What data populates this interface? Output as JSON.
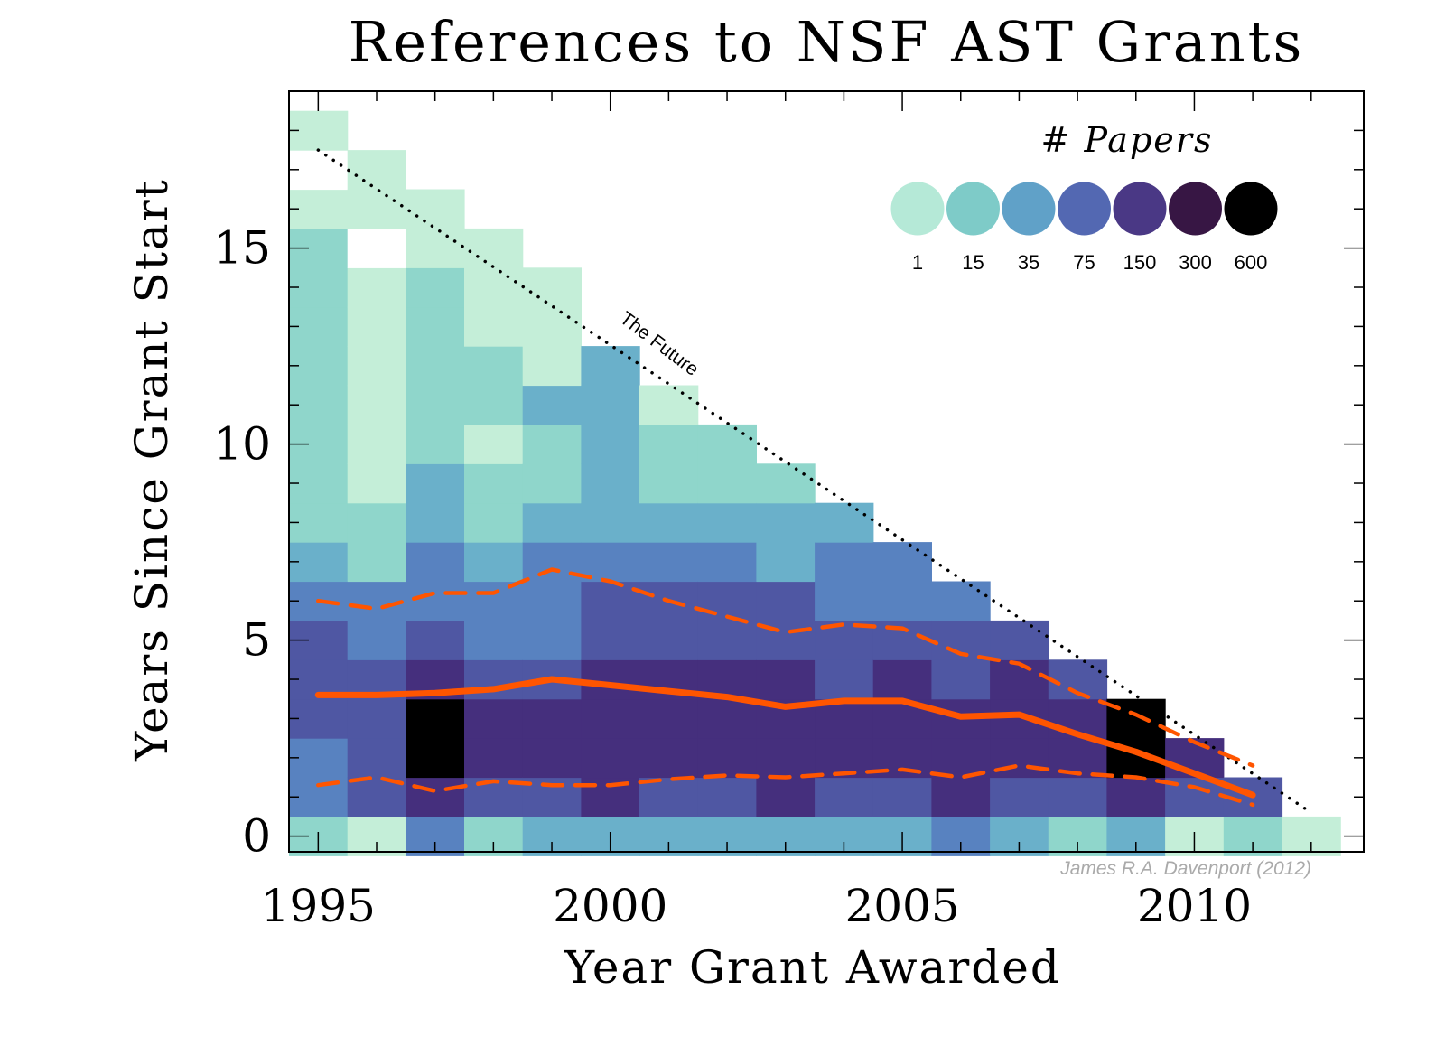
{
  "chart_data": {
    "type": "heatmap",
    "title": "References to NSF AST Grants",
    "xlabel": "Year Grant Awarded",
    "ylabel": "Years Since Grant Start",
    "x_ticks": [
      "1995",
      "2000",
      "2005",
      "2010"
    ],
    "y_ticks": [
      "0",
      "5",
      "10",
      "15"
    ],
    "xlim": [
      1994.5,
      2012.9
    ],
    "ylim": [
      -0.4,
      19.0
    ],
    "legend": {
      "title": "# Papers",
      "placement": "top-right",
      "levels": [
        {
          "label": "1",
          "color": "#b5e9d7"
        },
        {
          "label": "15",
          "color": "#7ecbc8"
        },
        {
          "label": "35",
          "color": "#60a1c8"
        },
        {
          "label": "75",
          "color": "#5368b2"
        },
        {
          "label": "150",
          "color": "#4a3885"
        },
        {
          "label": "300",
          "color": "#371644"
        },
        {
          "label": "600",
          "color": "#000000"
        }
      ]
    },
    "palette_cells": [
      "#c4eed8",
      "#8fd6cb",
      "#6ab0ca",
      "#5882c0",
      "#4f57a3",
      "#452f7d",
      "#000000",
      "#ffffff"
    ],
    "columns": [
      {
        "year": 1995,
        "levels": [
          1,
          3,
          3,
          4,
          4,
          4,
          3,
          2,
          1,
          1,
          1,
          1,
          1,
          1,
          1,
          1,
          0,
          7,
          0
        ]
      },
      {
        "year": 1996,
        "levels": [
          0,
          4,
          4,
          4,
          4,
          3,
          3,
          1,
          1,
          0,
          0,
          0,
          0,
          0,
          0,
          7,
          0,
          0
        ]
      },
      {
        "year": 1997,
        "levels": [
          3,
          5,
          6,
          6,
          5,
          4,
          3,
          3,
          2,
          2,
          1,
          1,
          1,
          1,
          1,
          0,
          0
        ]
      },
      {
        "year": 1998,
        "levels": [
          1,
          4,
          5,
          5,
          4,
          3,
          3,
          2,
          1,
          1,
          0,
          1,
          1,
          0,
          0,
          0
        ]
      },
      {
        "year": 1999,
        "levels": [
          2,
          4,
          5,
          5,
          4,
          3,
          3,
          3,
          2,
          1,
          1,
          2,
          0,
          0,
          0
        ]
      },
      {
        "year": 2000,
        "levels": [
          2,
          5,
          5,
          5,
          5,
          4,
          4,
          3,
          2,
          2,
          2,
          2,
          2
        ]
      },
      {
        "year": 2001,
        "levels": [
          2,
          4,
          5,
          5,
          5,
          4,
          4,
          3,
          2,
          1,
          1,
          0
        ]
      },
      {
        "year": 2002,
        "levels": [
          2,
          4,
          5,
          5,
          5,
          4,
          4,
          3,
          2,
          1,
          1
        ]
      },
      {
        "year": 2003,
        "levels": [
          2,
          5,
          5,
          5,
          5,
          4,
          4,
          2,
          2,
          1
        ]
      },
      {
        "year": 2004,
        "levels": [
          2,
          4,
          5,
          5,
          4,
          4,
          3,
          3,
          2
        ]
      },
      {
        "year": 2005,
        "levels": [
          2,
          4,
          5,
          5,
          5,
          4,
          3,
          3
        ]
      },
      {
        "year": 2006,
        "levels": [
          3,
          5,
          5,
          5,
          4,
          4,
          3
        ]
      },
      {
        "year": 2007,
        "levels": [
          2,
          4,
          5,
          5,
          5,
          4
        ]
      },
      {
        "year": 2008,
        "levels": [
          1,
          4,
          5,
          5,
          4
        ]
      },
      {
        "year": 2009,
        "levels": [
          2,
          5,
          6,
          6
        ]
      },
      {
        "year": 2010,
        "levels": [
          0,
          4,
          5
        ]
      },
      {
        "year": 2011,
        "levels": [
          1,
          4
        ]
      },
      {
        "year": 2012,
        "levels": [
          0
        ]
      }
    ],
    "series": [
      {
        "style": "solid",
        "color": "#ff5500",
        "x": [
          1995,
          1996,
          1997,
          1998,
          1999,
          2000,
          2001,
          2002,
          2003,
          2004,
          2005,
          2006,
          2007,
          2008,
          2009,
          2010,
          2011
        ],
        "y": [
          3.6,
          3.6,
          3.65,
          3.75,
          4.0,
          3.85,
          3.7,
          3.55,
          3.3,
          3.45,
          3.45,
          3.05,
          3.1,
          2.6,
          2.15,
          1.6,
          1.05
        ]
      },
      {
        "style": "dashed",
        "color": "#ff5500",
        "x": [
          1995,
          1996,
          1997,
          1998,
          1999,
          2000,
          2001,
          2002,
          2003,
          2004,
          2005,
          2006,
          2007,
          2008,
          2009,
          2010,
          2011
        ],
        "y": [
          6.0,
          5.8,
          6.2,
          6.2,
          6.8,
          6.5,
          6.0,
          5.6,
          5.2,
          5.4,
          5.3,
          4.65,
          4.4,
          3.65,
          3.1,
          2.4,
          1.8
        ]
      },
      {
        "style": "dashed",
        "color": "#ff5500",
        "x": [
          1995,
          1996,
          1997,
          1998,
          1999,
          2000,
          2001,
          2002,
          2003,
          2004,
          2005,
          2006,
          2007,
          2008,
          2009,
          2010,
          2011
        ],
        "y": [
          1.3,
          1.5,
          1.15,
          1.4,
          1.3,
          1.3,
          1.45,
          1.55,
          1.5,
          1.6,
          1.7,
          1.5,
          1.8,
          1.6,
          1.5,
          1.25,
          0.8
        ]
      }
    ],
    "future_line": {
      "x": [
        1995,
        2012
      ],
      "y": [
        17.5,
        0.6
      ],
      "label": "The Future"
    },
    "credit": "James R.A. Davenport (2012)"
  }
}
